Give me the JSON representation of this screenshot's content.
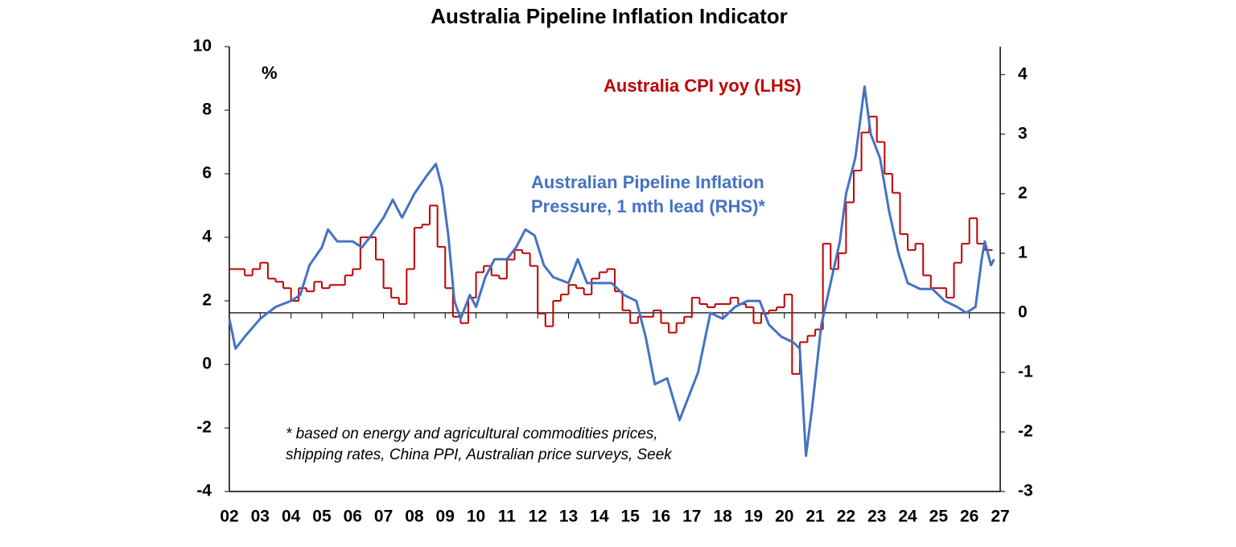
{
  "chart_data": {
    "type": "line",
    "title": "Australia Pipeline Inflation Indicator",
    "annotations": [
      "%",
      "* based on energy and agricultural commodities prices,",
      "shipping rates, China PPI, Australian price surveys, Seek"
    ],
    "xlim": [
      2002,
      2027
    ],
    "xticks": [
      {
        "value": 2002,
        "label": "02"
      },
      {
        "value": 2003,
        "label": "03"
      },
      {
        "value": 2004,
        "label": "04"
      },
      {
        "value": 2005,
        "label": "05"
      },
      {
        "value": 2006,
        "label": "06"
      },
      {
        "value": 2007,
        "label": "07"
      },
      {
        "value": 2008,
        "label": "08"
      },
      {
        "value": 2009,
        "label": "09"
      },
      {
        "value": 2010,
        "label": "10"
      },
      {
        "value": 2011,
        "label": "11"
      },
      {
        "value": 2012,
        "label": "12"
      },
      {
        "value": 2013,
        "label": "13"
      },
      {
        "value": 2014,
        "label": "14"
      },
      {
        "value": 2015,
        "label": "15"
      },
      {
        "value": 2016,
        "label": "16"
      },
      {
        "value": 2017,
        "label": "17"
      },
      {
        "value": 2018,
        "label": "18"
      },
      {
        "value": 2019,
        "label": "19"
      },
      {
        "value": 2020,
        "label": "20"
      },
      {
        "value": 2021,
        "label": "21"
      },
      {
        "value": 2022,
        "label": "22"
      },
      {
        "value": 2023,
        "label": "23"
      },
      {
        "value": 2024,
        "label": "24"
      },
      {
        "value": 2025,
        "label": "25"
      },
      {
        "value": 2026,
        "label": "26"
      },
      {
        "value": 2027,
        "label": "27"
      }
    ],
    "ylim": [
      -4,
      10
    ],
    "yticks": [
      -4,
      -2,
      0,
      2,
      4,
      6,
      8,
      10
    ],
    "y2lim": [
      -3,
      4.47
    ],
    "y2ticks": [
      -3,
      -2,
      -1,
      0,
      1,
      2,
      3,
      4
    ],
    "series": [
      {
        "name": "Australia CPI yoy (LHS)",
        "color": "#c00000",
        "step": true,
        "x": [
          2002,
          2002.25,
          2002.5,
          2002.75,
          2003,
          2003.25,
          2003.5,
          2003.75,
          2004,
          2004.25,
          2004.5,
          2004.75,
          2005,
          2005.25,
          2005.5,
          2005.75,
          2006,
          2006.25,
          2006.5,
          2006.75,
          2007,
          2007.25,
          2007.5,
          2007.75,
          2008,
          2008.25,
          2008.5,
          2008.75,
          2009,
          2009.25,
          2009.5,
          2009.75,
          2010,
          2010.25,
          2010.5,
          2010.75,
          2011,
          2011.25,
          2011.5,
          2011.75,
          2012,
          2012.25,
          2012.5,
          2012.75,
          2013,
          2013.25,
          2013.5,
          2013.75,
          2014,
          2014.25,
          2014.5,
          2014.75,
          2015,
          2015.25,
          2015.5,
          2015.75,
          2016,
          2016.25,
          2016.5,
          2016.75,
          2017,
          2017.25,
          2017.5,
          2017.75,
          2018,
          2018.25,
          2018.5,
          2018.75,
          2019,
          2019.25,
          2019.5,
          2019.75,
          2020,
          2020.25,
          2020.5,
          2020.75,
          2021,
          2021.25,
          2021.5,
          2021.75,
          2022,
          2022.25,
          2022.5,
          2022.75,
          2023,
          2023.25,
          2023.5,
          2023.75,
          2024,
          2024.25,
          2024.5,
          2024.75,
          2025,
          2025.25,
          2025.5,
          2025.75,
          2026,
          2026.25,
          2026.5
        ],
        "values": [
          3.0,
          3.0,
          2.8,
          3.0,
          3.2,
          2.7,
          2.6,
          2.4,
          2.0,
          2.4,
          2.3,
          2.6,
          2.4,
          2.5,
          2.5,
          2.8,
          3.0,
          4.0,
          4.0,
          3.3,
          2.4,
          2.1,
          1.9,
          3.0,
          4.3,
          4.4,
          5.0,
          3.7,
          2.4,
          1.5,
          1.3,
          2.1,
          2.9,
          3.1,
          2.8,
          2.7,
          3.3,
          3.6,
          3.5,
          3.1,
          1.6,
          1.2,
          2.0,
          2.2,
          2.5,
          2.4,
          2.2,
          2.7,
          2.9,
          3.0,
          2.3,
          1.7,
          1.3,
          1.5,
          1.5,
          1.7,
          1.3,
          1.0,
          1.3,
          1.5,
          2.1,
          1.9,
          1.8,
          1.9,
          1.9,
          2.1,
          1.9,
          1.8,
          1.3,
          1.6,
          1.7,
          1.8,
          2.2,
          -0.3,
          0.7,
          0.9,
          1.1,
          3.8,
          3.0,
          3.5,
          5.1,
          6.1,
          7.3,
          7.8,
          7.0,
          6.0,
          5.4,
          4.1,
          3.6,
          3.8,
          2.8,
          2.4,
          2.4,
          2.1,
          3.2,
          3.8,
          4.6,
          3.8,
          3.6
        ]
      },
      {
        "name": "Australian Pipeline Inflation Pressure, 1 mth lead (RHS)*",
        "color": "#4472c4",
        "axis": "y2",
        "x": [
          2002.0,
          2002.2,
          2002.5,
          2003.0,
          2003.5,
          2004.0,
          2004.3,
          2004.6,
          2005.0,
          2005.2,
          2005.5,
          2006.0,
          2006.3,
          2006.6,
          2007.0,
          2007.3,
          2007.6,
          2008.0,
          2008.4,
          2008.7,
          2008.9,
          2009.1,
          2009.3,
          2009.5,
          2009.8,
          2010.0,
          2010.3,
          2010.6,
          2011.0,
          2011.3,
          2011.6,
          2011.9,
          2012.2,
          2012.5,
          2013.0,
          2013.3,
          2013.6,
          2014.0,
          2014.4,
          2014.8,
          2015.2,
          2015.5,
          2015.8,
          2016.2,
          2016.6,
          2016.9,
          2017.2,
          2017.6,
          2018.0,
          2018.4,
          2018.8,
          2019.2,
          2019.5,
          2019.9,
          2020.3,
          2020.5,
          2020.7,
          2020.9,
          2021.2,
          2021.5,
          2021.8,
          2022.0,
          2022.3,
          2022.6,
          2022.8,
          2023.1,
          2023.4,
          2023.7,
          2024.0,
          2024.4,
          2024.8,
          2025.2,
          2025.6,
          2025.9,
          2026.2,
          2026.4,
          2026.5,
          2026.7,
          2026.8
        ],
        "values": [
          -0.1,
          -0.6,
          -0.4,
          -0.1,
          0.1,
          0.2,
          0.3,
          0.8,
          1.1,
          1.4,
          1.2,
          1.2,
          1.1,
          1.3,
          1.6,
          1.9,
          1.6,
          2.0,
          2.3,
          2.5,
          2.1,
          1.3,
          0.2,
          -0.1,
          0.3,
          0.1,
          0.6,
          0.9,
          0.9,
          1.1,
          1.4,
          1.3,
          0.8,
          0.6,
          0.5,
          0.9,
          0.5,
          0.5,
          0.5,
          0.3,
          0.2,
          -0.4,
          -1.2,
          -1.1,
          -1.8,
          -1.4,
          -1.0,
          0.0,
          -0.1,
          0.1,
          0.2,
          0.2,
          -0.2,
          -0.4,
          -0.5,
          -0.6,
          -2.4,
          -1.6,
          -0.2,
          0.5,
          1.2,
          2.0,
          2.6,
          3.8,
          3.0,
          2.6,
          1.7,
          1.0,
          0.5,
          0.4,
          0.4,
          0.2,
          0.1,
          0.0,
          0.1,
          0.9,
          1.2,
          0.8,
          0.9
        ]
      }
    ]
  }
}
